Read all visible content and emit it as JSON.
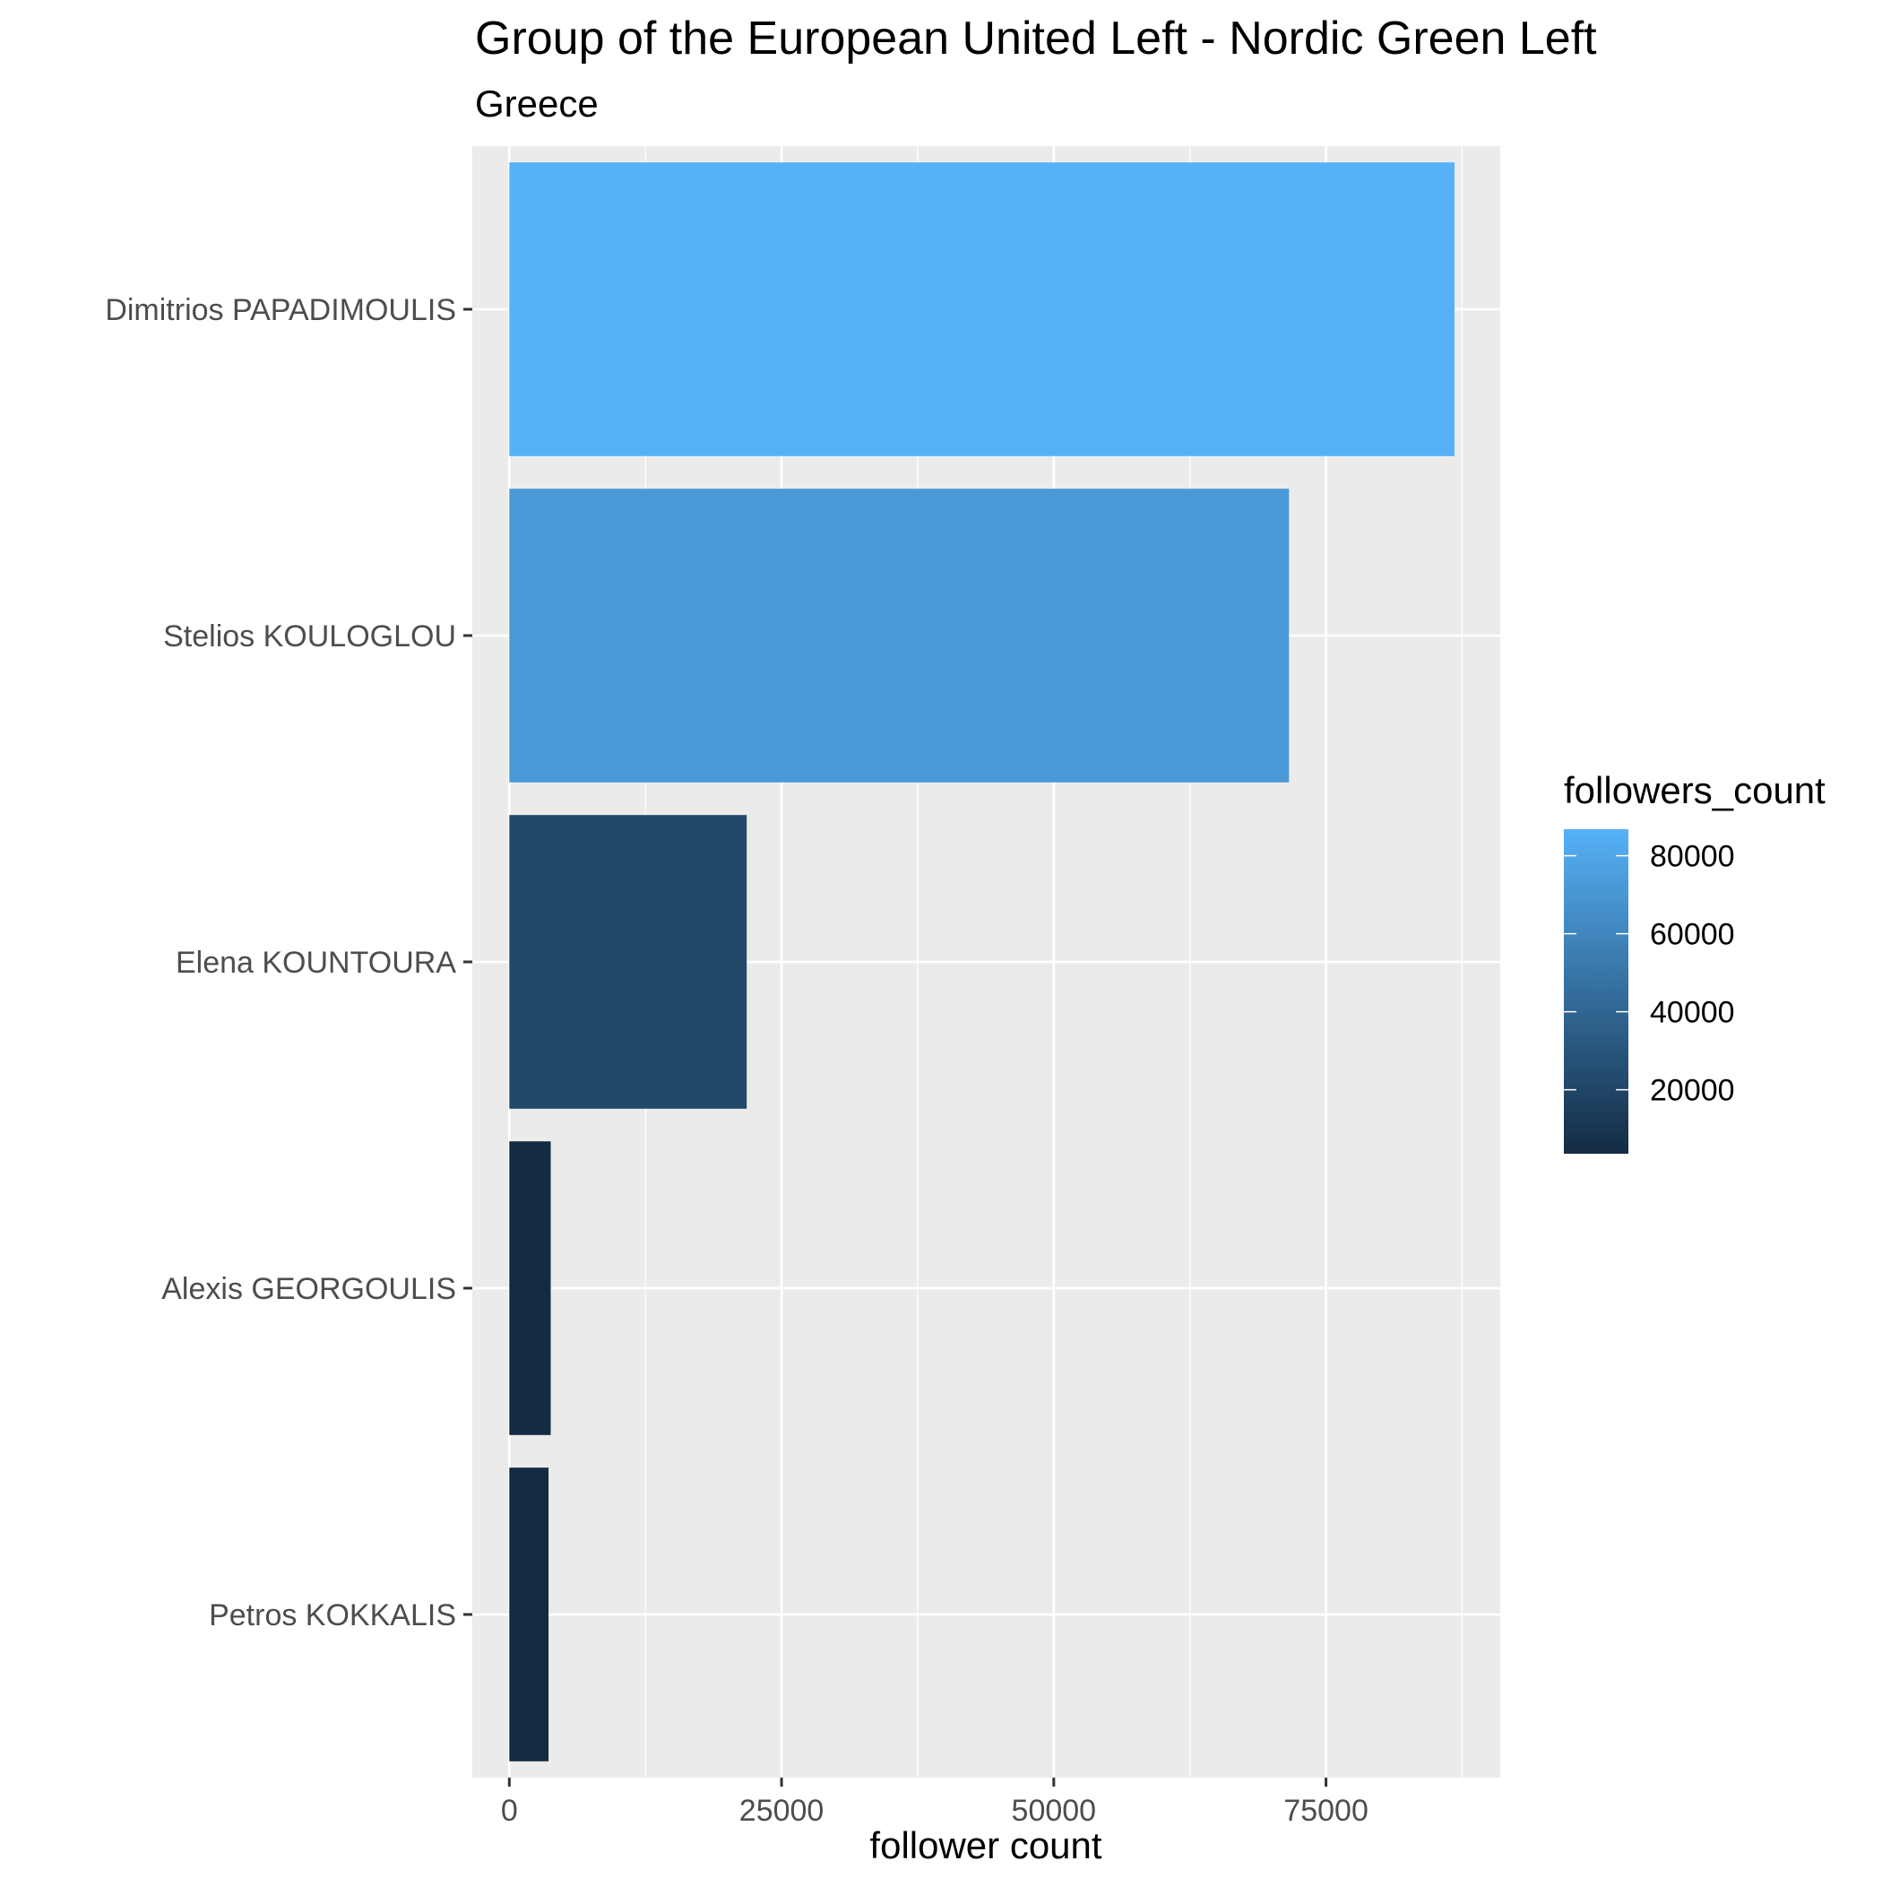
{
  "chart_data": {
    "type": "bar",
    "orientation": "horizontal",
    "title": "Group of the European United Left - Nordic Green Left",
    "subtitle": "Greece",
    "xlabel": "follower count",
    "ylabel": "",
    "categories": [
      "Dimitrios PAPADIMOULIS",
      "Stelios KOULOGLOU",
      "Elena KOUNTOURA",
      "Alexis GEORGOULIS",
      "Petros KOKKALIS"
    ],
    "values": [
      86800,
      71600,
      21800,
      3800,
      3600
    ],
    "xlim": [
      -3400,
      91000
    ],
    "xticks": [
      0,
      25000,
      50000,
      75000
    ],
    "xtick_labels": [
      "0",
      "25000",
      "50000",
      "75000"
    ],
    "grid": true,
    "legend": {
      "title": "followers_count",
      "position": "right",
      "min": 3600,
      "max": 86800,
      "low_color": "#132B43",
      "high_color": "#56B1F7",
      "ticks": [
        20000,
        40000,
        60000,
        80000
      ],
      "tick_labels": [
        "20000",
        "40000",
        "60000",
        "80000"
      ]
    },
    "colors": {
      "panel_background": "#EBEBEB",
      "grid_line": "#FFFFFF",
      "tick_text": "#4D4D4D"
    }
  }
}
